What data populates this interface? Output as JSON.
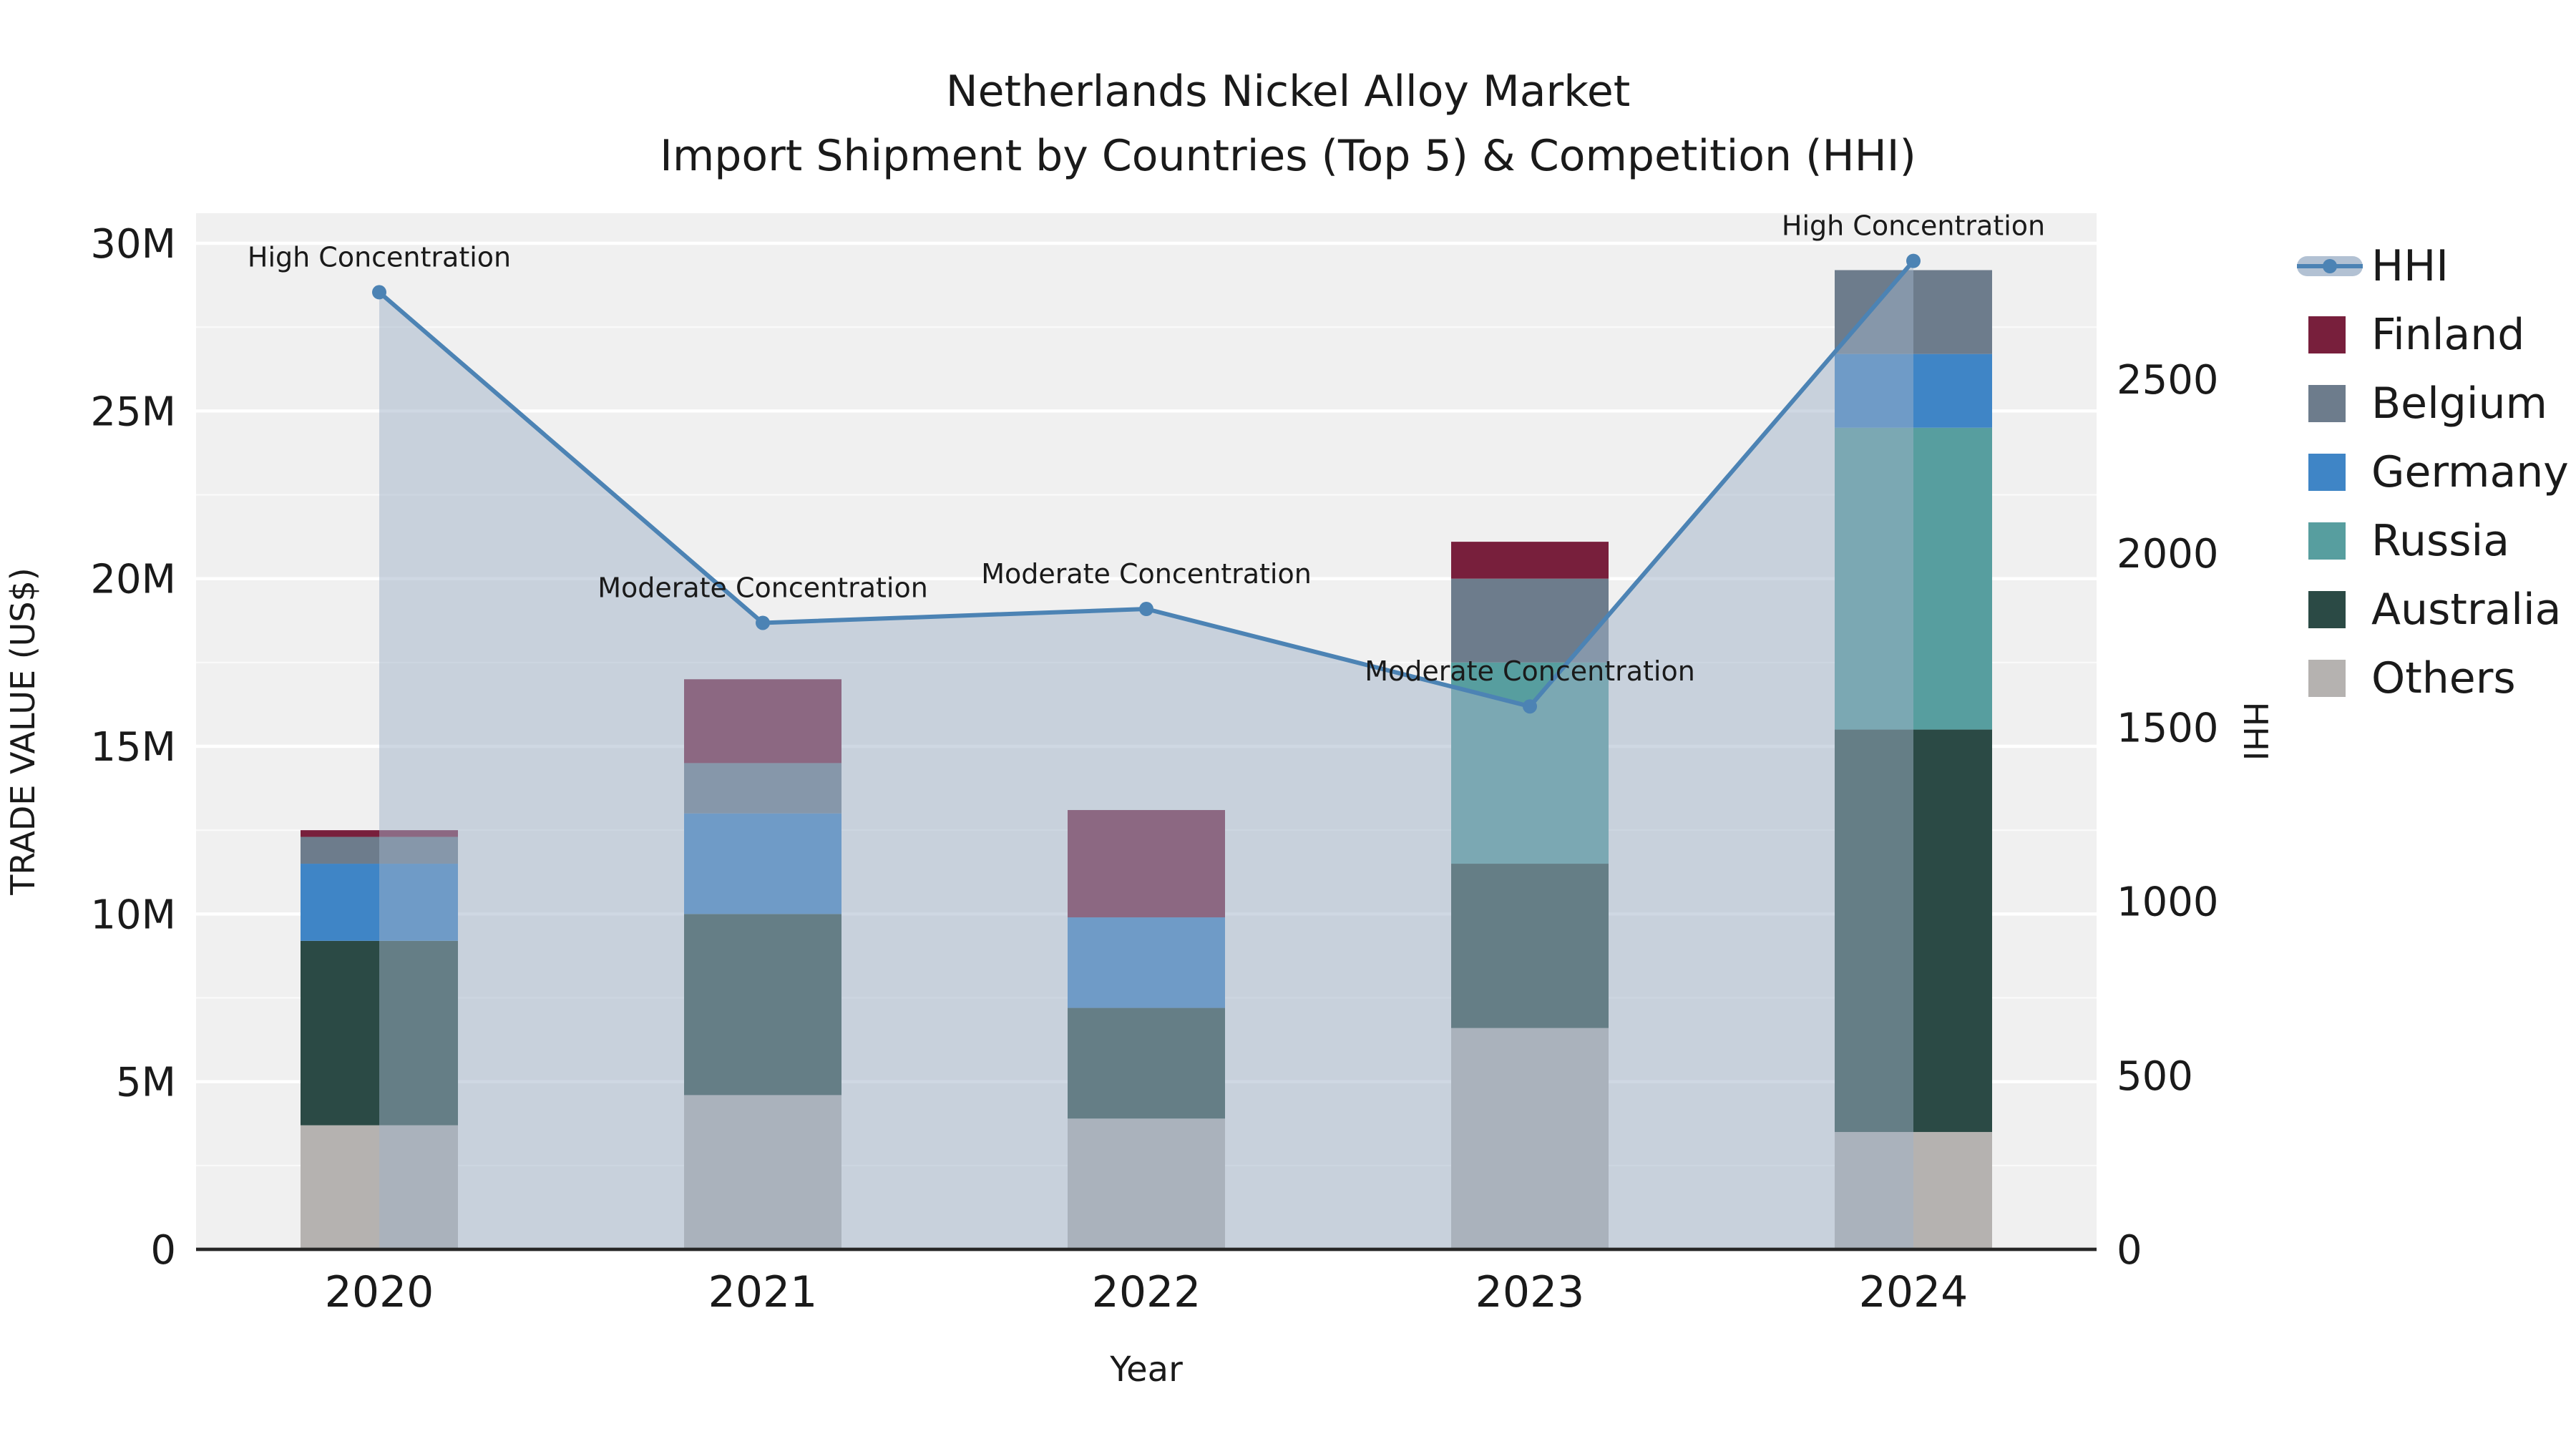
{
  "chart_data": {
    "type": "bar",
    "subtype": "stacked-bars-with-hhi-line-and-area",
    "title": "Netherlands Nickel Alloy Market",
    "subtitle": "Import Shipment by Countries (Top 5) & Competition (HHI)",
    "xlabel": "Year",
    "ylabel_left": "TRADE VALUE (US$)",
    "ylabel_right": "HHI",
    "categories": [
      "2020",
      "2021",
      "2022",
      "2023",
      "2024"
    ],
    "bar_unit": "millions USD",
    "bar_series": [
      {
        "name": "Others",
        "color": "#b5b2b0",
        "values": [
          3.7,
          4.6,
          3.9,
          6.6,
          3.5
        ]
      },
      {
        "name": "Australia",
        "color": "#2b4a45",
        "values": [
          5.5,
          5.4,
          3.3,
          4.9,
          12.0
        ]
      },
      {
        "name": "Russia",
        "color": "#579e9f",
        "values": [
          0,
          0,
          0,
          6.0,
          9.0
        ]
      },
      {
        "name": "Germany",
        "color": "#3f85c6",
        "values": [
          2.3,
          3.0,
          2.7,
          0,
          2.2
        ]
      },
      {
        "name": "Belgium",
        "color": "#6d7c8c",
        "values": [
          0.8,
          1.5,
          0,
          2.5,
          2.5
        ]
      },
      {
        "name": "Finland",
        "color": "#781f3c",
        "values": [
          0.2,
          2.5,
          3.2,
          1.1,
          0
        ]
      }
    ],
    "line_series": {
      "name": "HHI",
      "color": "#4c83b4",
      "fill_color": "#9fb2c8",
      "fill_opacity": 0.5,
      "values": [
        2750,
        1800,
        1840,
        1560,
        2840
      ]
    },
    "annotations": [
      "High Concentration",
      "Moderate Concentration",
      "Moderate Concentration",
      "Moderate Concentration",
      "High Concentration"
    ],
    "left_axis": {
      "ticks": [
        "0",
        "5M",
        "10M",
        "15M",
        "20M",
        "25M",
        "30M"
      ],
      "tick_values": [
        0,
        5,
        10,
        15,
        20,
        25,
        30
      ],
      "max": 30
    },
    "right_axis": {
      "ticks": [
        "0",
        "500",
        "1000",
        "1500",
        "2000",
        "2500"
      ],
      "tick_values": [
        0,
        500,
        1000,
        1500,
        2000,
        2500
      ],
      "max": 3000
    },
    "legend": [
      "HHI",
      "Finland",
      "Belgium",
      "Germany",
      "Russia",
      "Australia",
      "Others"
    ],
    "plot_bg": "#f0f0f0",
    "grid_color": "#ffffff",
    "text_color": "#1a1a1a"
  }
}
